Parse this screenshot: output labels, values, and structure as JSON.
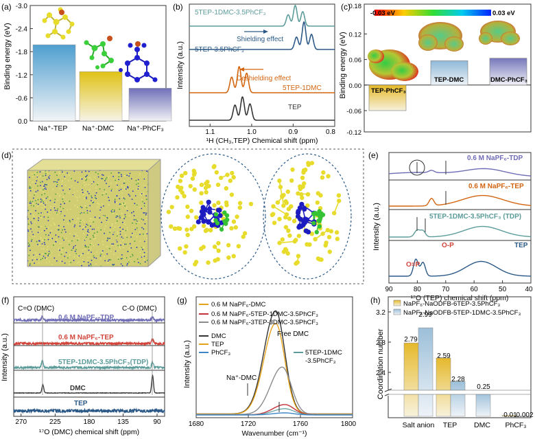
{
  "colors": {
    "tep": "#4f9fd0",
    "dmc": "#d8c21c",
    "phcf3": "#6f6fb4",
    "orange": "#d3640f",
    "teal": "#5b9c9a",
    "navy": "#2b5987",
    "purple": "#6f6cb6",
    "red": "#d2443a",
    "gray": "#7a7a7a",
    "dark": "#333333",
    "h_gold": "#e5b92c",
    "h_blue": "#9cbfd9",
    "h_dmc_blue": "#8fb8d8"
  },
  "chart_data": [
    {
      "panel": "(a)",
      "type": "bar",
      "categories": [
        "Na⁺-TEP",
        "Na⁺-DMC",
        "Na⁺-PhCF₃"
      ],
      "values": [
        -1.98,
        -1.28,
        -0.85
      ],
      "ylabel": "Binding energy (eV)",
      "ylim": [
        -3.0,
        0
      ],
      "yticks": [
        "-3.0",
        "-2.4",
        "-1.8",
        "-1.2",
        "-0.6",
        "0.0"
      ]
    },
    {
      "panel": "(b)",
      "type": "line",
      "series": [
        {
          "name": "5TEP-1DMC-3.5PhCF₃",
          "label": "5TEP-1DMC-3.5PhCF₃",
          "peaks": [
            0.912,
            0.895,
            0.877
          ]
        },
        {
          "name": "5TEP-3.5PhCF₃",
          "label": "5TEP-3.5PhCF₃",
          "peaks": [
            0.892,
            0.874,
            0.856
          ]
        },
        {
          "name": "5TEP-1DMC",
          "label": "5TEP-1DMC",
          "peaks": [
            1.048,
            1.03,
            1.012
          ]
        },
        {
          "name": "TEP",
          "label": "TEP",
          "peaks": [
            1.04,
            1.022,
            1.004
          ]
        }
      ],
      "annotations": [
        "Shielding effect",
        "Deshielding effect"
      ],
      "xlabel": "¹H (CH₃,TEP) Chemical shift (ppm)",
      "ylabel": "Intensity (a.u.)",
      "xlim": [
        1.15,
        0.8
      ],
      "xticks": [
        "1.1",
        "1.0",
        "0.9",
        "0.8"
      ]
    },
    {
      "panel": "(c)",
      "type": "bar",
      "categories": [
        "TEP-PhCF₃",
        "TEP-DMC",
        "DMC-PhCF₃"
      ],
      "values": [
        -0.06,
        0.057,
        0.063
      ],
      "ylabel": "Binding energy (eV)",
      "ylim": [
        -0.12,
        0.18
      ],
      "yticks": [
        "-0.12",
        "-0.06",
        "0.00",
        "0.06",
        "0.12",
        "0.18"
      ],
      "colorbar": {
        "min": "-0.03 eV",
        "max": "0.03 eV"
      }
    },
    {
      "panel": "(e)",
      "type": "line",
      "series": [
        {
          "name": "0.6 M NaPF₆-TDP",
          "label": "0.6 M NaPF₆-TDP"
        },
        {
          "name": "0.6 M NaPF₆-TEP",
          "label": "0.6 M NaPF₆-TEP"
        },
        {
          "name": "5TEP-1DMC-3.5PhCF₃ (TDP)",
          "label": "5TEP-1DMC-3.5PhCF₃ (TDP)"
        },
        {
          "name": "TEP",
          "label": "TEP"
        }
      ],
      "annotations": [
        "O=P",
        "O-P"
      ],
      "xlabel": "¹⁷O (TEP) chemical shift (ppm)",
      "ylabel": "Intensity (a.u.)",
      "xlim": [
        90,
        40
      ],
      "xticks": [
        "90",
        "80",
        "70",
        "60",
        "50",
        "40"
      ]
    },
    {
      "panel": "(f)",
      "type": "line",
      "series": [
        {
          "name": "0.6 M NaPF₆-TDP",
          "label": "0.6 M NaPF₆-TDP"
        },
        {
          "name": "0.6 M NaPF₆-TEP",
          "label": "0.6 M NaPF₆-TEP"
        },
        {
          "name": "5TEP-1DMC-3.5PhCF₃(TDP)",
          "label": "5TEP-1DMC-3.5PhCF₃(TDP)"
        },
        {
          "name": "DMC",
          "label": "DMC"
        },
        {
          "name": "TEP",
          "label": "TEP"
        }
      ],
      "annotations": [
        "C=O (DMC)",
        "C-O (DMC)"
      ],
      "xlabel": "¹⁷O (DMC) chemical shift (ppm)",
      "ylabel": "Intensity (a.u.)",
      "xlim": [
        280,
        80
      ],
      "xticks": [
        "270",
        "225",
        "180",
        "135",
        "90"
      ]
    },
    {
      "panel": "(g)",
      "type": "line",
      "legend": [
        "0.6 M NaPF₆-DMC",
        "0.6 M NaPF₆-5TEP-1DMC-3.5PhCF₃",
        "0.6 M NaPF₆-3TEP-3DMC-3.5PhCF₃",
        "DMC",
        "TEP",
        "PhCF₃",
        "5TEP-1DMC -3.5PhCF₃"
      ],
      "series": [
        {
          "name": "DMC",
          "peak_x": 1741,
          "height": 1.0
        },
        {
          "name": "TEP",
          "peak_x": 1741,
          "height": 0.88
        },
        {
          "name": "0.6 M NaPF₆-3TEP-3DMC-3.5PhCF₃",
          "peak_x": 1746,
          "height": 0.46
        },
        {
          "name": "0.6 M NaPF₆-5TEP-1DMC-3.5PhCF₃",
          "peak_x": 1748,
          "height": 0.1
        },
        {
          "name": "5TEP-1DMC -3.5PhCF₃",
          "peak_x": 1748,
          "height": 0.06
        },
        {
          "name": "PhCF₃",
          "peak_x": 1748,
          "height": 0.02
        }
      ],
      "annotations": [
        "Free DMC",
        "Na⁺-DMC"
      ],
      "xlabel": "Wavenumber (cm⁻¹)",
      "ylabel": "Intensity (a.u.)",
      "xlim": [
        1680,
        1800
      ],
      "xticks": [
        "1680",
        "1720",
        "1760",
        "1800"
      ]
    },
    {
      "panel": "(h)",
      "type": "bar",
      "categories": [
        "Salt anion",
        "TEP",
        "DMC",
        "PhCF₃"
      ],
      "series": [
        {
          "name": "NaPF₆-NaODFB-6TEP-3.5PhCF₃",
          "values": [
            2.79,
            2.59,
            null,
            0.01
          ]
        },
        {
          "name": "NaPF₆-NaODFB-5TEP-1DMC-3.5PhCF₃",
          "values": [
            2.99,
            2.28,
            0.25,
            0.002
          ]
        }
      ],
      "value_labels": [
        "2.79",
        "2.99",
        "2.59",
        "2.28",
        "0.25",
        "0.01",
        "0.002"
      ],
      "ylabel": "Coordination number",
      "ylim_upper": [
        2.2,
        3.2
      ],
      "yticks": [
        "2.4",
        "2.8",
        "3.2"
      ]
    }
  ],
  "panels": {
    "a": {
      "label": "(a)",
      "ylabel": "Binding energy (eV)",
      "yticks": [
        "-3.0",
        "-2.4",
        "-1.8",
        "-1.2",
        "-0.6",
        "0.0"
      ],
      "cats": [
        "Na⁺-TEP",
        "Na⁺-DMC",
        "Na⁺-PhCF₃"
      ]
    },
    "b": {
      "label": "(b)",
      "ylabel": "Intensity (a.u.)",
      "xlabel": "¹H (CH₃,TEP) Chemical shift (ppm)",
      "xticks": [
        "1.1",
        "1.0",
        "0.9",
        "0.8"
      ],
      "s1": "5TEP-1DMC-3.5PhCF₃",
      "s2": "5TEP-3.5PhCF₃",
      "s3": "5TEP-1DMC",
      "s4": "TEP",
      "shield": "Shielding effect",
      "deshield": "Deshielding effect"
    },
    "c": {
      "label": "(c)",
      "ylabel": "Binding energy (eV)",
      "yticks": [
        "-0.12",
        "-0.06",
        "0.00",
        "0.06",
        "0.12",
        "0.18"
      ],
      "cbmin": "-0.03 eV",
      "cbmax": "0.03 eV",
      "c1": "TEP-PhCF₃",
      "c2": "TEP-DMC",
      "c3": "DMC-PhCF₃"
    },
    "d": {
      "label": "(d)"
    },
    "e": {
      "label": "(e)",
      "ylabel": "Intensity (a.u.)",
      "xlabel": "¹⁷O (TEP) chemical shift (ppm)",
      "xticks": [
        "90",
        "80",
        "70",
        "60",
        "50",
        "40"
      ],
      "s1": "0.6 M NaPF₆-TDP",
      "s2": "0.6 M NaPF₆-TEP",
      "s3": "5TEP-1DMC-3.5PhCF₃ (TDP)",
      "s4": "TEP",
      "a1": "O=P",
      "a2": "O-P"
    },
    "f": {
      "label": "(f)",
      "ylabel": "Intensity (a.u.)",
      "xlabel": "¹⁷O (DMC) chemical shift (ppm)",
      "xticks": [
        "270",
        "225",
        "180",
        "135",
        "90"
      ],
      "co": "C=O (DMC)",
      "c_o": "C-O (DMC)",
      "s1": "0.6 M NaPF₆-TDP",
      "s2": "0.6 M NaPF₆-TEP",
      "s3": "5TEP-1DMC-3.5PhCF₃(TDP)",
      "s4": "DMC",
      "s5": "TEP"
    },
    "g": {
      "label": "(g)",
      "ylabel": "Intensity (a.u.)",
      "xlabel": "Wavenumber (cm⁻¹)",
      "xticks": [
        "1680",
        "1720",
        "1760",
        "1800"
      ],
      "l1": "0.6 M NaPF₆-DMC",
      "l2": "0.6 M NaPF₆-5TEP-1DMC-3.5PhCF₃",
      "l3": "0.6 M NaPF₆-3TEP-3DMC-3.5PhCF₃",
      "l4": "DMC",
      "l5": "TEP",
      "l6": "PhCF₃",
      "l7a": "5TEP-1DMC",
      "l7b": "-3.5PhCF₃",
      "free": "Free DMC",
      "nadmc": "Na⁺-DMC"
    },
    "h": {
      "label": "(h)",
      "ylabel": "Coordination number",
      "yticks": [
        "2.4",
        "2.8",
        "3.2"
      ],
      "leg1": "NaPF₆-NaODFB-6TEP-3.5PhCF₃",
      "leg2": "NaPF₆-NaODFB-5TEP-1DMC-3.5PhCF₃",
      "cats": [
        "Salt anion",
        "TEP",
        "DMC",
        "PhCF₃"
      ],
      "v1": "2.79",
      "v2": "2.99",
      "v3": "2.59",
      "v4": "2.28",
      "v5": "0.25",
      "v6": "0.01",
      "v7": "0.002"
    }
  }
}
